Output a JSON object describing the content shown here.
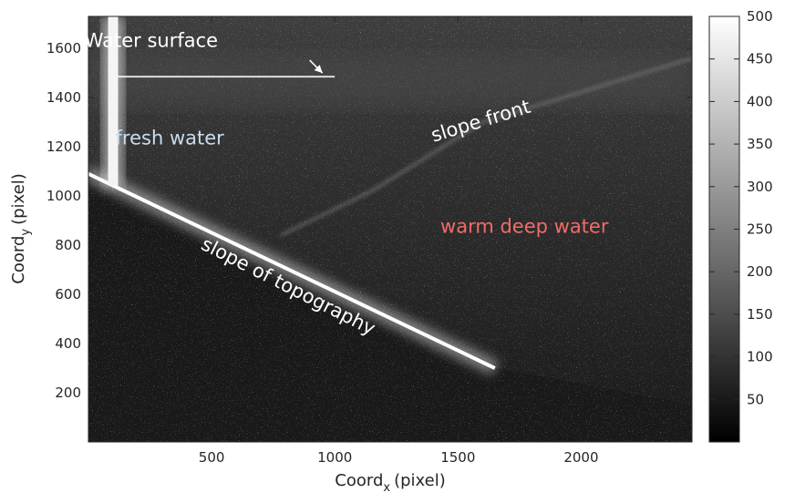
{
  "chart_data": {
    "type": "heatmap",
    "title": "",
    "xlabel": "Coord",
    "xlabel_sub": "x",
    "xlabel_unit": "(pixel)",
    "ylabel": "Coord",
    "ylabel_sub": "y",
    "ylabel_unit": "(pixel)",
    "xlim": [
      0,
      2450
    ],
    "ylim": [
      0,
      1730
    ],
    "xticks": [
      500,
      1000,
      1500,
      2000
    ],
    "yticks": [
      200,
      400,
      600,
      800,
      1000,
      1200,
      1400,
      1600
    ],
    "colorbar": {
      "colormap": "gray",
      "clim": [
        0,
        500
      ],
      "ticks": [
        50,
        100,
        150,
        200,
        250,
        300,
        350,
        400,
        450,
        500
      ]
    },
    "features": {
      "vertical_wall_x": 100,
      "water_surface_y": 1485,
      "slope_line": [
        [
          0,
          1090
        ],
        [
          1650,
          300
        ]
      ],
      "slope_front": [
        [
          780,
          840
        ],
        [
          1150,
          1020
        ],
        [
          1600,
          1300
        ],
        [
          2450,
          1560
        ]
      ]
    },
    "annotations": [
      {
        "text": "Water surface",
        "x": 255,
        "y": 1605,
        "color": "#ffffff",
        "weight": "normal",
        "rotate": 0,
        "arrow_to": [
          950,
          1500
        ]
      },
      {
        "text": "fresh water",
        "x": 330,
        "y": 1210,
        "color": "#c9dced",
        "weight": "normal",
        "rotate": 0
      },
      {
        "text": "slope front",
        "x": 1600,
        "y": 1280,
        "color": "#ffffff",
        "weight": "normal",
        "rotate": -17
      },
      {
        "text": "warm deep water",
        "x": 1770,
        "y": 850,
        "color": "#f26b6b",
        "weight": "normal",
        "rotate": 0
      },
      {
        "text": "slope of topography",
        "x": 800,
        "y": 610,
        "color": "#ffffff",
        "weight": "normal",
        "rotate": 27
      }
    ]
  }
}
